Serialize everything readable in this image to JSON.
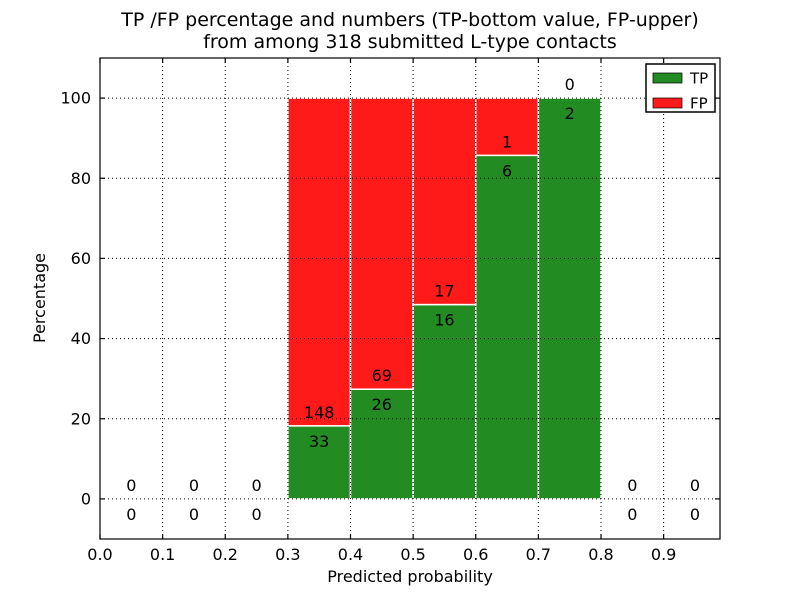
{
  "chart_data": {
    "type": "bar",
    "stacked": true,
    "unit": "percent",
    "title_lines": [
      "TP /FP percentage and numbers (TP-bottom value, FP-upper)",
      "from among 318 submitted L-type contacts"
    ],
    "xlabel": "Predicted probability",
    "ylabel": "Percentage",
    "x_tick_values": [
      0.0,
      0.1,
      0.2,
      0.3,
      0.4,
      0.5,
      0.6,
      0.7,
      0.8,
      0.9
    ],
    "x_tick_labels": [
      "0.0",
      "0.1",
      "0.2",
      "0.3",
      "0.4",
      "0.5",
      "0.6",
      "0.7",
      "0.8",
      "0.9"
    ],
    "y_tick_values": [
      0,
      20,
      40,
      60,
      80,
      100
    ],
    "y_tick_labels": [
      "0",
      "20",
      "40",
      "60",
      "80",
      "100"
    ],
    "xlim": [
      0.0,
      0.99
    ],
    "ylim": [
      -10,
      110
    ],
    "grid": true,
    "grid_style": "dotted",
    "background": "#ffffff",
    "bar_edge_color": "#ffffff",
    "legend": {
      "position": "upper right",
      "entries": [
        {
          "label": "TP",
          "color": "#228b22"
        },
        {
          "label": "FP",
          "color": "#ff1a1a"
        }
      ]
    },
    "bins": [
      {
        "x_start": 0.0,
        "x_end": 0.1,
        "tp": 0,
        "fp": 0
      },
      {
        "x_start": 0.1,
        "x_end": 0.2,
        "tp": 0,
        "fp": 0
      },
      {
        "x_start": 0.2,
        "x_end": 0.3,
        "tp": 0,
        "fp": 0
      },
      {
        "x_start": 0.3,
        "x_end": 0.4,
        "tp": 33,
        "fp": 148
      },
      {
        "x_start": 0.4,
        "x_end": 0.5,
        "tp": 26,
        "fp": 69
      },
      {
        "x_start": 0.5,
        "x_end": 0.6,
        "tp": 16,
        "fp": 17
      },
      {
        "x_start": 0.6,
        "x_end": 0.7,
        "tp": 6,
        "fp": 1
      },
      {
        "x_start": 0.7,
        "x_end": 0.8,
        "tp": 2,
        "fp": 0
      },
      {
        "x_start": 0.8,
        "x_end": 0.9,
        "tp": 0,
        "fp": 0
      },
      {
        "x_start": 0.9,
        "x_end": 1.0,
        "tp": 0,
        "fp": 0
      }
    ]
  }
}
